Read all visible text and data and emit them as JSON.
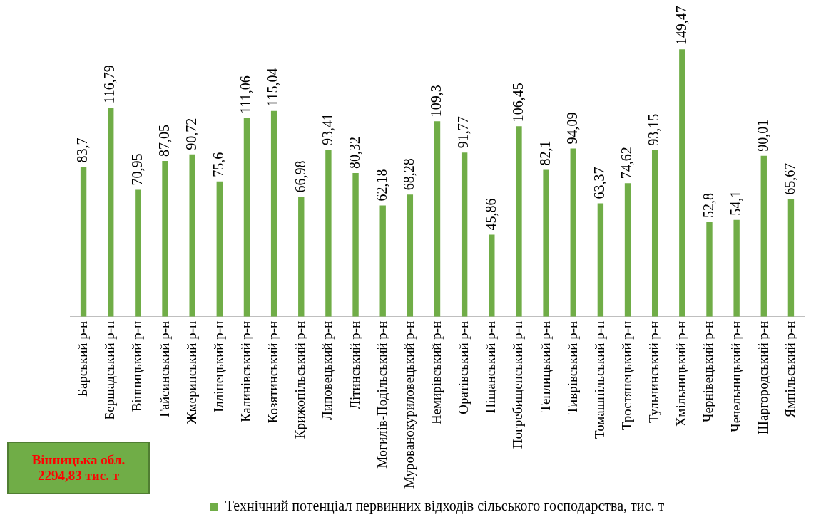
{
  "chart_data": {
    "type": "bar",
    "categories": [
      "Барський р-н",
      "Бершадський р-н",
      "Вінницький р-н",
      "Гайсинський р-н",
      "Жмеринський р-н",
      "Іллінецький р-н",
      "Калинівський р-н",
      "Козятинський р-н",
      "Крижопільський р-н",
      "Липовецький р-н",
      "Літинський р-н",
      "Могилів-Подільський р-н",
      "Мурованокуриловецький р-н",
      "Немирівський р-н",
      "Оратівський р-н",
      "Піщанський р-н",
      "Погребищенський р-н",
      "Теплицький р-н",
      "Тиврівський р-н",
      "Томашпільський р-н",
      "Тростянецький р-н",
      "Тульчинський р-н",
      "Хмільницький р-н",
      "Чернівецький р-н",
      "Чечельницький р-н",
      "Шаргородський р-н",
      "Ямпільський р-н"
    ],
    "series": [
      {
        "name": "Технічний потенціал первинних відходів сільського господарства, тис. т",
        "color": "#70ad47",
        "values": [
          83.7,
          116.79,
          70.95,
          87.05,
          90.72,
          75.6,
          111.06,
          115.04,
          66.98,
          93.41,
          80.32,
          62.18,
          68.28,
          109.3,
          91.77,
          45.86,
          106.45,
          82.1,
          94.09,
          63.37,
          74.62,
          93.15,
          149.47,
          52.8,
          54.1,
          90.01,
          65.67
        ],
        "value_labels": [
          "83,7",
          "116,79",
          "70,95",
          "87,05",
          "90,72",
          "75,6",
          "111,06",
          "115,04",
          "66,98",
          "93,41",
          "80,32",
          "62,18",
          "68,28",
          "109,3",
          "91,77",
          "45,86",
          "106,45",
          "82,1",
          "94,09",
          "63,37",
          "74,62",
          "93,15",
          "149,47",
          "52,8",
          "54,1",
          "90,01",
          "65,67"
        ]
      }
    ],
    "legend": "bottom",
    "grid": false,
    "annotations": [
      "Вінницька обл. 2294,83 тис. т"
    ]
  }
}
